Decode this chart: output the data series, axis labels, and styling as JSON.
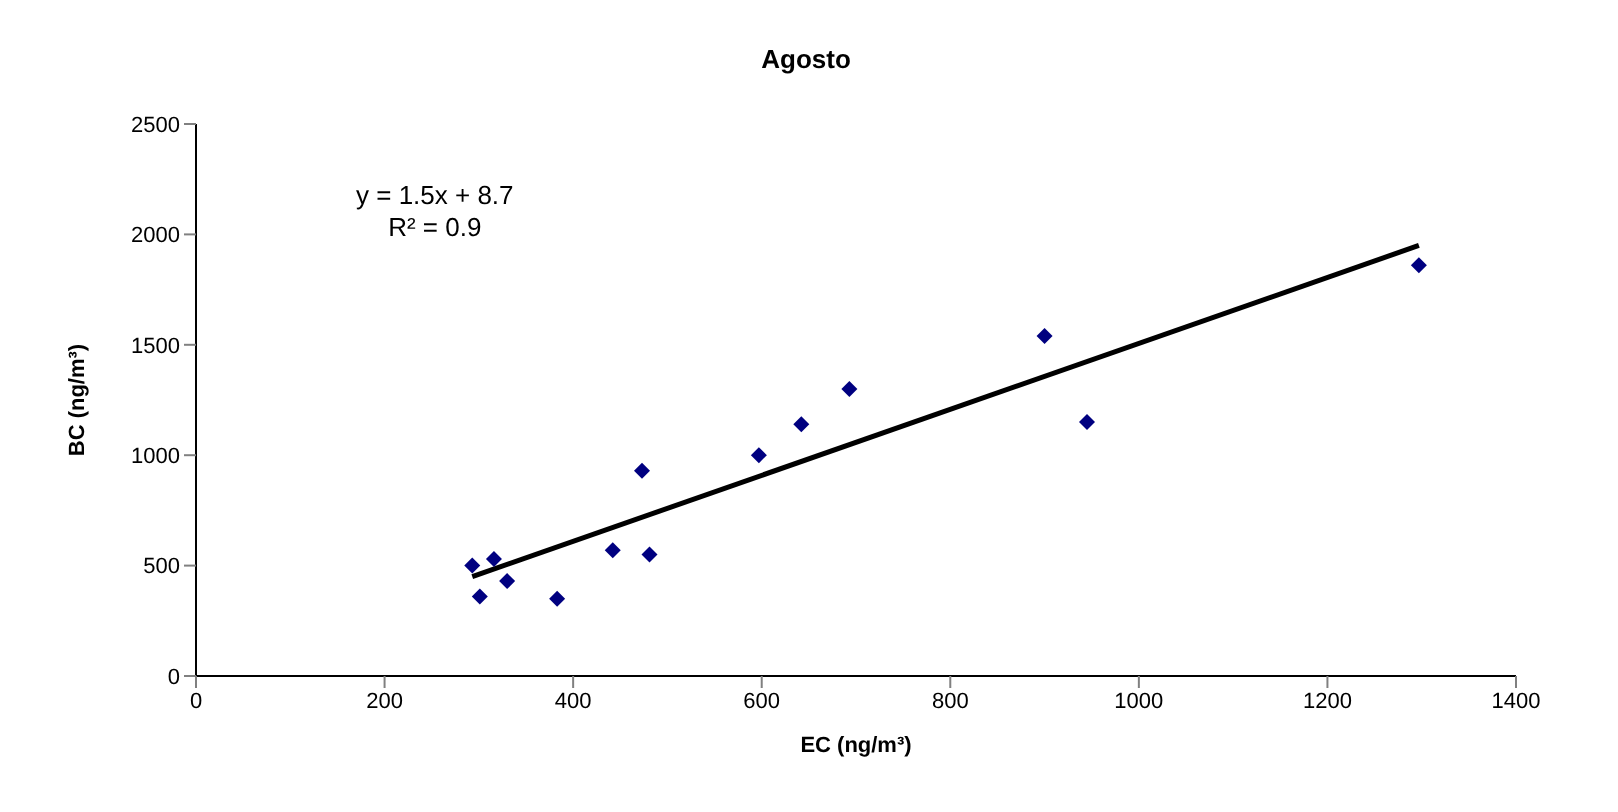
{
  "chart_data": {
    "type": "scatter",
    "title": "Agosto",
    "xlabel": "EC (ng/m³)",
    "ylabel": "BC (ng/m³)",
    "xlim": [
      0,
      1400
    ],
    "xticks": [
      0,
      200,
      400,
      600,
      800,
      1000,
      1200,
      1400
    ],
    "ylim": [
      0,
      2500
    ],
    "yticks": [
      0,
      500,
      1000,
      1500,
      2000,
      2500
    ],
    "marker": "diamond",
    "annotations": [
      "y = 1.5x + 8.7",
      "R² = 0.9"
    ],
    "series": [
      {
        "color": "#000080",
        "x": [
          293,
          301,
          316,
          330,
          383,
          442,
          473,
          481,
          597,
          642,
          693,
          900,
          945,
          1297
        ],
        "values": [
          500,
          360,
          530,
          430,
          350,
          570,
          930,
          550,
          1000,
          1140,
          1300,
          1540,
          1150,
          1860
        ]
      },
      {
        "type": "line",
        "color": "#000000",
        "marker": "none",
        "line_style": "solid",
        "x": [
          293,
          1297
        ],
        "values": [
          450,
          1950
        ]
      }
    ]
  }
}
